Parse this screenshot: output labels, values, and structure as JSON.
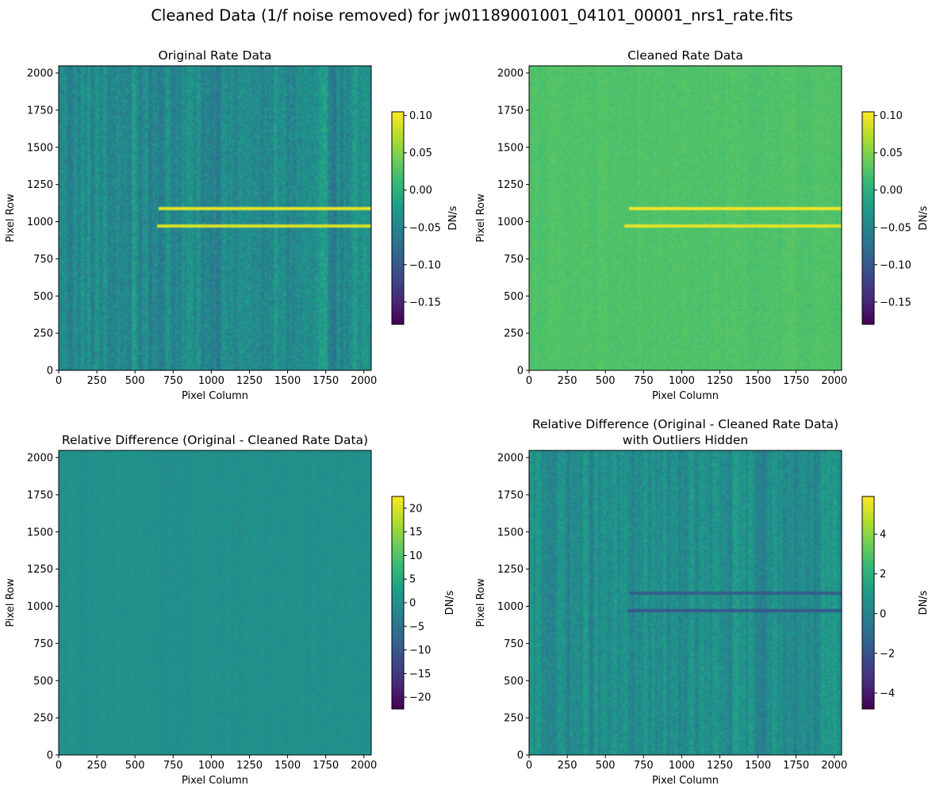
{
  "figure": {
    "suptitle": "Cleaned Data (1/f noise removed) for jw01189001001_04101_00001_nrs1_rate.fits"
  },
  "chart_data": [
    {
      "type": "heatmap",
      "title": "Original Rate Data",
      "title_line2": "",
      "xlabel": "Pixel Column",
      "ylabel": "Pixel Row",
      "xlim": [
        0,
        2048
      ],
      "ylim": [
        0,
        2048
      ],
      "xticks": [
        0,
        250,
        500,
        750,
        1000,
        1250,
        1500,
        1750,
        2000
      ],
      "yticks": [
        0,
        250,
        500,
        750,
        1000,
        1250,
        1500,
        1750,
        2000
      ],
      "colorscale": "viridis",
      "colorbar": {
        "label": "DN/s",
        "vmin": -0.18,
        "vmax": 0.105,
        "ticks": [
          "0.10",
          "0.05",
          "0.00",
          "−0.05",
          "−0.10",
          "−0.15"
        ],
        "tick_values": [
          0.1,
          0.05,
          0.0,
          -0.05,
          -0.1,
          -0.15
        ]
      },
      "background_level": -0.045,
      "stripe_amplitude": 0.03,
      "features": [
        {
          "x_start": 650,
          "x_end": 2048,
          "y": 1090,
          "value": 0.095
        },
        {
          "x_start": 640,
          "x_end": 2048,
          "y": 975,
          "value": 0.09
        }
      ]
    },
    {
      "type": "heatmap",
      "title": "Cleaned Rate Data",
      "title_line2": "",
      "xlabel": "Pixel Column",
      "ylabel": "Pixel Row",
      "xlim": [
        0,
        2048
      ],
      "ylim": [
        0,
        2048
      ],
      "xticks": [
        0,
        250,
        500,
        750,
        1000,
        1250,
        1500,
        1750,
        2000
      ],
      "yticks": [
        0,
        250,
        500,
        750,
        1000,
        1250,
        1500,
        1750,
        2000
      ],
      "colorscale": "viridis",
      "colorbar": {
        "label": "DN/s",
        "vmin": -0.18,
        "vmax": 0.105,
        "ticks": [
          "0.10",
          "0.05",
          "0.00",
          "−0.05",
          "−0.10",
          "−0.15"
        ],
        "tick_values": [
          0.1,
          0.05,
          0.0,
          -0.05,
          -0.1,
          -0.15
        ]
      },
      "background_level": 0.025,
      "stripe_amplitude": 0.004,
      "features": [
        {
          "x_start": 650,
          "x_end": 2048,
          "y": 1090,
          "value": 0.1
        },
        {
          "x_start": 620,
          "x_end": 2048,
          "y": 975,
          "value": 0.095
        }
      ]
    },
    {
      "type": "heatmap",
      "title": "Relative Difference (Original - Cleaned Rate Data)",
      "title_line2": "",
      "xlabel": "Pixel Column",
      "ylabel": "Pixel Row",
      "xlim": [
        0,
        2048
      ],
      "ylim": [
        0,
        2048
      ],
      "xticks": [
        0,
        250,
        500,
        750,
        1000,
        1250,
        1500,
        1750,
        2000
      ],
      "yticks": [
        0,
        250,
        500,
        750,
        1000,
        1250,
        1500,
        1750,
        2000
      ],
      "colorscale": "viridis",
      "colorbar": {
        "label": "DN/s",
        "vmin": -22.5,
        "vmax": 22.5,
        "ticks": [
          "20",
          "15",
          "10",
          "5",
          "0",
          "−5",
          "−10",
          "−15",
          "−20"
        ],
        "tick_values": [
          20,
          15,
          10,
          5,
          0,
          -5,
          -10,
          -15,
          -20
        ]
      },
      "background_level": 0.2,
      "stripe_amplitude": 0.6,
      "features": []
    },
    {
      "type": "heatmap",
      "title": "Relative Difference (Original - Cleaned Rate Data)",
      "title_line2": "with Outliers Hidden",
      "xlabel": "Pixel Column",
      "ylabel": "Pixel Row",
      "xlim": [
        0,
        2048
      ],
      "ylim": [
        0,
        2048
      ],
      "xticks": [
        0,
        250,
        500,
        750,
        1000,
        1250,
        1500,
        1750,
        2000
      ],
      "yticks": [
        0,
        250,
        500,
        750,
        1000,
        1250,
        1500,
        1750,
        2000
      ],
      "colorscale": "viridis",
      "colorbar": {
        "label": "DN/s",
        "vmin": -4.8,
        "vmax": 5.9,
        "ticks": [
          "4",
          "2",
          "0",
          "−2",
          "−4"
        ],
        "tick_values": [
          4,
          2,
          0,
          -2,
          -4
        ]
      },
      "background_level": 0.4,
      "stripe_amplitude": 0.9,
      "features": [
        {
          "x_start": 650,
          "x_end": 2048,
          "y": 1090,
          "value": -1.6
        },
        {
          "x_start": 640,
          "x_end": 2048,
          "y": 975,
          "value": -1.8
        }
      ]
    }
  ]
}
